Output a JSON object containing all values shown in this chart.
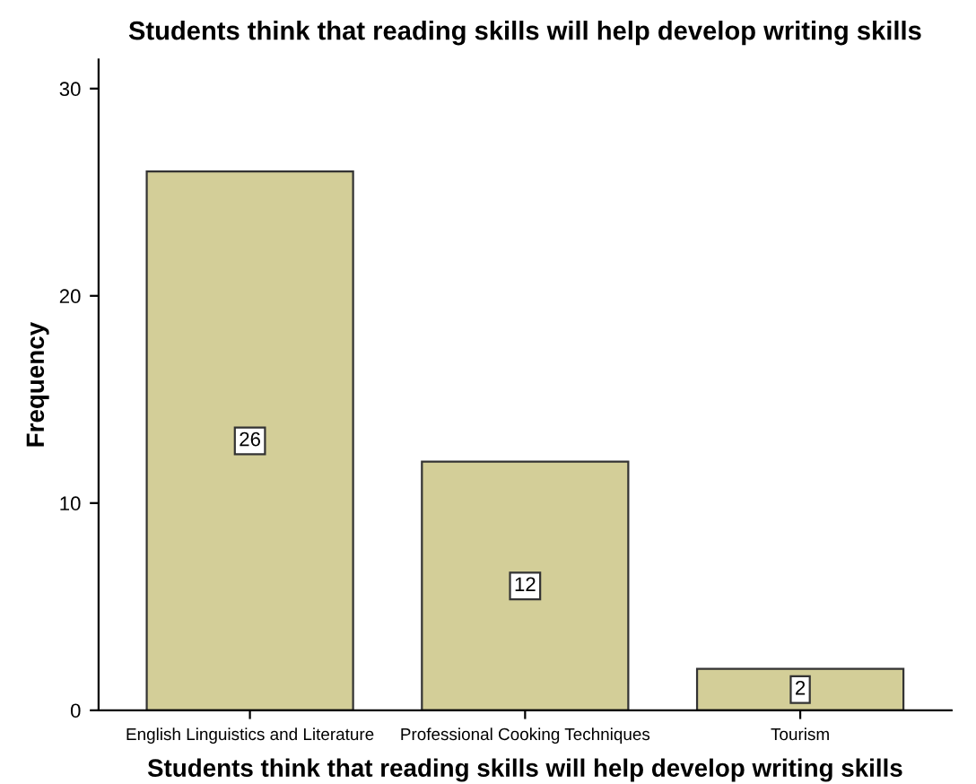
{
  "chart_data": {
    "type": "bar",
    "title": "Students think that reading skills will help develop writing skills",
    "xlabel": "Students think that reading skills will help develop writing skills",
    "ylabel": "Frequency",
    "categories": [
      "English Linguistics and Literature",
      "Professional Cooking Techniques",
      "Tourism"
    ],
    "values": [
      26,
      12,
      2
    ],
    "color": "#d3ce98",
    "ylim": [
      0,
      31.4
    ],
    "yticks": [
      0,
      10,
      20,
      30
    ],
    "grid": false,
    "data_labels": true
  }
}
